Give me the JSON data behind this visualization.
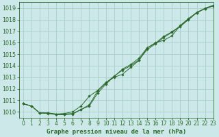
{
  "title": "Graphe pression niveau de la mer (hPa)",
  "bg_color": "#cce8e8",
  "grid_color": "#aacccc",
  "line_color": "#2d6a2d",
  "marker_color": "#2d6a2d",
  "xlim": [
    -0.5,
    23
  ],
  "ylim": [
    1009.5,
    1019.5
  ],
  "yticks": [
    1010,
    1011,
    1012,
    1013,
    1014,
    1015,
    1016,
    1017,
    1018,
    1019
  ],
  "xticks": [
    0,
    1,
    2,
    3,
    4,
    5,
    6,
    7,
    8,
    9,
    10,
    11,
    12,
    13,
    14,
    15,
    16,
    17,
    18,
    19,
    20,
    21,
    22,
    23
  ],
  "series1_x": [
    0,
    1,
    2,
    3,
    4,
    5,
    6,
    7,
    8,
    9,
    10,
    11,
    12,
    13,
    14,
    15,
    16,
    17,
    18,
    19,
    20,
    21,
    22,
    23
  ],
  "series1_y": [
    1010.7,
    1010.5,
    1009.9,
    1009.85,
    1009.75,
    1009.75,
    1009.8,
    1010.2,
    1010.5,
    1011.6,
    1012.4,
    1013.05,
    1013.7,
    1014.1,
    1014.65,
    1015.55,
    1015.95,
    1016.55,
    1016.95,
    1017.45,
    1018.05,
    1018.65,
    1018.95,
    1019.2
  ],
  "series2_x": [
    0,
    1,
    2,
    3,
    4,
    5,
    6,
    7,
    8,
    9,
    10,
    11,
    12,
    13,
    14,
    15,
    16,
    17,
    18,
    19,
    20,
    21,
    22,
    23
  ],
  "series2_y": [
    1010.7,
    1010.5,
    1009.9,
    1009.9,
    1009.8,
    1009.85,
    1010.0,
    1010.5,
    1011.35,
    1011.85,
    1012.55,
    1013.0,
    1013.25,
    1013.85,
    1014.45,
    1015.55,
    1016.0,
    1016.2,
    1016.6,
    1017.5,
    1018.1,
    1018.6,
    1019.0,
    1019.25
  ],
  "series3_x": [
    0,
    1,
    2,
    3,
    4,
    5,
    6,
    7,
    8,
    9,
    10,
    11,
    12,
    13,
    14,
    15,
    16,
    17,
    18,
    19,
    20,
    21,
    22,
    23
  ],
  "series3_y": [
    1010.7,
    1010.5,
    1009.9,
    1009.9,
    1009.8,
    1009.8,
    1009.85,
    1010.2,
    1010.6,
    1011.8,
    1012.5,
    1013.1,
    1013.6,
    1014.0,
    1014.5,
    1015.4,
    1015.9,
    1016.45,
    1016.9,
    1017.4,
    1018.0,
    1018.6,
    1018.95,
    1019.2
  ],
  "title_fontsize": 6.5,
  "tick_fontsize": 5.5
}
